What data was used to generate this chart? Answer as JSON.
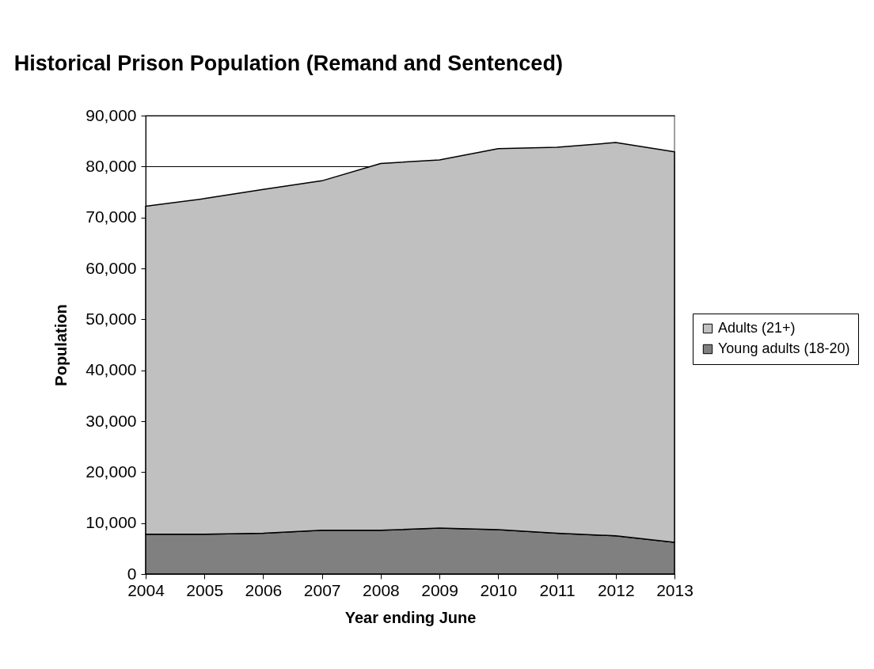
{
  "chart_data": {
    "type": "area",
    "title": "Historical Prison Population (Remand and Sentenced)",
    "xlabel": "Year ending June",
    "ylabel": "Population",
    "x": [
      2004,
      2005,
      2006,
      2007,
      2008,
      2009,
      2010,
      2011,
      2012,
      2013
    ],
    "stacked": true,
    "series": [
      {
        "name": "Young adults (18-20)",
        "color": "#808080",
        "values": [
          7800,
          7800,
          8000,
          8600,
          8600,
          9000,
          8700,
          8000,
          7500,
          6200
        ]
      },
      {
        "name": "Adults (21+)",
        "color": "#c0c0c0",
        "values": [
          64400,
          65900,
          67500,
          68600,
          72000,
          72300,
          74800,
          75800,
          77200,
          76700
        ]
      }
    ],
    "xlim": [
      2004,
      2013
    ],
    "xticks": [
      2004,
      2005,
      2006,
      2007,
      2008,
      2009,
      2010,
      2011,
      2012,
      2013
    ],
    "ylim": [
      0,
      90000
    ],
    "yticks": [
      0,
      {
        "value": 10000,
        "label": "10,000"
      },
      {
        "value": 20000,
        "label": "20,000"
      },
      {
        "value": 30000,
        "label": "30,000"
      },
      {
        "value": 40000,
        "label": "40,000"
      },
      {
        "value": 50000,
        "label": "50,000"
      },
      {
        "value": 60000,
        "label": "60,000"
      },
      {
        "value": 70000,
        "label": "70,000"
      },
      {
        "value": 80000,
        "label": "80,000"
      },
      {
        "value": 90000,
        "label": "90,000"
      }
    ],
    "grid": "y",
    "legend": "right"
  }
}
